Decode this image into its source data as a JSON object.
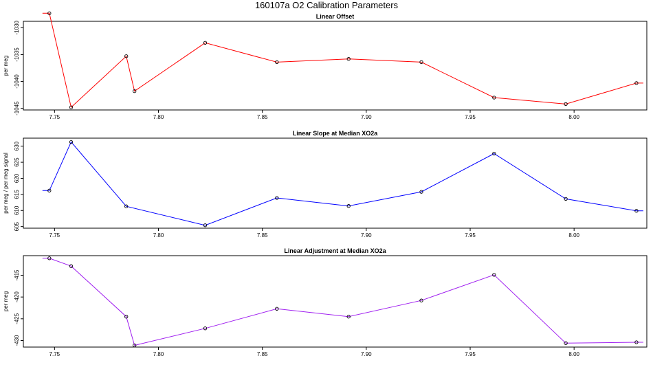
{
  "title": "160107a   O2 Calibration Parameters",
  "chart_data": [
    {
      "type": "line",
      "title": "Linear Offset",
      "xlabel": "",
      "ylabel": "per meg",
      "color": "#ff0000",
      "xlim": [
        7.735,
        8.035
      ],
      "ylim": [
        -1045.3,
        -1028.8
      ],
      "xticks": [
        "7.75",
        "7.80",
        "7.85",
        "7.90",
        "7.95",
        "8.00"
      ],
      "yticks": [
        "-1030",
        "-1035",
        "-1040",
        "-1045"
      ],
      "x": [
        7.7475,
        7.758,
        7.7845,
        7.7885,
        7.8225,
        7.857,
        7.8915,
        7.9265,
        7.9615,
        7.996,
        8.03
      ],
      "y": [
        -1027.3,
        -1044.8,
        -1035.3,
        -1041.8,
        -1032.8,
        -1036.4,
        -1035.8,
        -1036.4,
        -1043.0,
        -1044.2,
        -1040.3
      ]
    },
    {
      "type": "line",
      "title": "Linear Slope at Median XO2a",
      "xlabel": "",
      "ylabel": "per meg / per meg signal",
      "color": "#0000ff",
      "xlim": [
        7.735,
        8.035
      ],
      "ylim": [
        604.5,
        632.5
      ],
      "xticks": [
        "7.75",
        "7.80",
        "7.85",
        "7.90",
        "7.95",
        "8.00"
      ],
      "yticks": [
        "605",
        "610",
        "615",
        "620",
        "625",
        "630"
      ],
      "x": [
        7.7475,
        7.758,
        7.7845,
        7.8225,
        7.857,
        7.8915,
        7.9265,
        7.9615,
        7.996,
        8.03
      ],
      "y": [
        616.2,
        631.3,
        611.3,
        605.4,
        613.9,
        611.4,
        615.8,
        627.7,
        613.6,
        609.9
      ]
    },
    {
      "type": "line",
      "title": "Linear Adjustment at Median XO2a",
      "xlabel": "",
      "ylabel": "per meg",
      "color": "#a020f0",
      "xlim": [
        7.735,
        8.035
      ],
      "ylim": [
        -431.5,
        -410.5
      ],
      "xticks": [
        "7.75",
        "7.80",
        "7.85",
        "7.90",
        "7.95",
        "8.00"
      ],
      "yticks": [
        "-415",
        "-420",
        "-425",
        "-430"
      ],
      "x": [
        7.7475,
        7.758,
        7.7845,
        7.7885,
        7.8225,
        7.857,
        7.8915,
        7.9265,
        7.9615,
        7.996,
        8.03
      ],
      "y": [
        -411.1,
        -412.9,
        -424.5,
        -431.1,
        -427.2,
        -422.7,
        -424.5,
        -420.8,
        -414.9,
        -430.6,
        -430.4
      ]
    }
  ]
}
